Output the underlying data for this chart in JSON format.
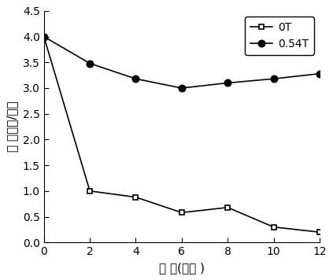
{
  "x": [
    0,
    2,
    4,
    6,
    8,
    10,
    12
  ],
  "series_0T": [
    4.0,
    1.0,
    0.88,
    0.58,
    0.68,
    0.3,
    0.2
  ],
  "series_054T": [
    4.0,
    3.48,
    3.18,
    3.0,
    3.1,
    3.18,
    3.28
  ],
  "xlabel": "时 间(小时 )",
  "ylabel": "浓 度（克/升）",
  "legend_0T": "0T",
  "legend_054T": "0.54T",
  "xlim": [
    0,
    12
  ],
  "ylim": [
    0,
    4.5
  ],
  "yticks": [
    0.0,
    0.5,
    1.0,
    1.5,
    2.0,
    2.5,
    3.0,
    3.5,
    4.0,
    4.5
  ],
  "xticks": [
    0,
    2,
    4,
    6,
    8,
    10,
    12
  ],
  "line_color": "#000000",
  "background_color": "#ffffff",
  "figsize": [
    4.23,
    3.56
  ],
  "dpi": 100
}
